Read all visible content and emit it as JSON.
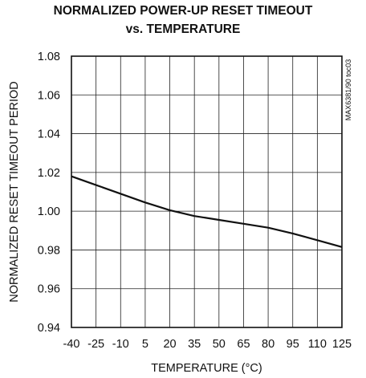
{
  "chart_data": {
    "type": "line",
    "title_line1": "NORMALIZED POWER-UP RESET TIMEOUT",
    "title_line2": "vs. TEMPERATURE",
    "xlabel": "TEMPERATURE (°C)",
    "ylabel": "NORMALIZED RESET TIMEOUT PERIOD",
    "figure_code": "MAX6381/90 toc03",
    "x_ticks": [
      -40,
      -25,
      -10,
      5,
      20,
      35,
      50,
      65,
      80,
      95,
      110,
      125
    ],
    "y_ticks": [
      "0.94",
      "0.96",
      "0.98",
      "1.00",
      "1.02",
      "1.04",
      "1.06",
      "1.08"
    ],
    "xlim": [
      -40,
      125
    ],
    "ylim": [
      0.94,
      1.08
    ],
    "grid": true,
    "series": [
      {
        "x": [
          -40,
          -25,
          -10,
          5,
          20,
          35,
          50,
          65,
          80,
          95,
          110,
          125
        ],
        "y": [
          1.018,
          1.0135,
          1.009,
          1.0045,
          1.0005,
          0.9975,
          0.9955,
          0.9935,
          0.9915,
          0.9885,
          0.985,
          0.9815
        ]
      }
    ]
  }
}
